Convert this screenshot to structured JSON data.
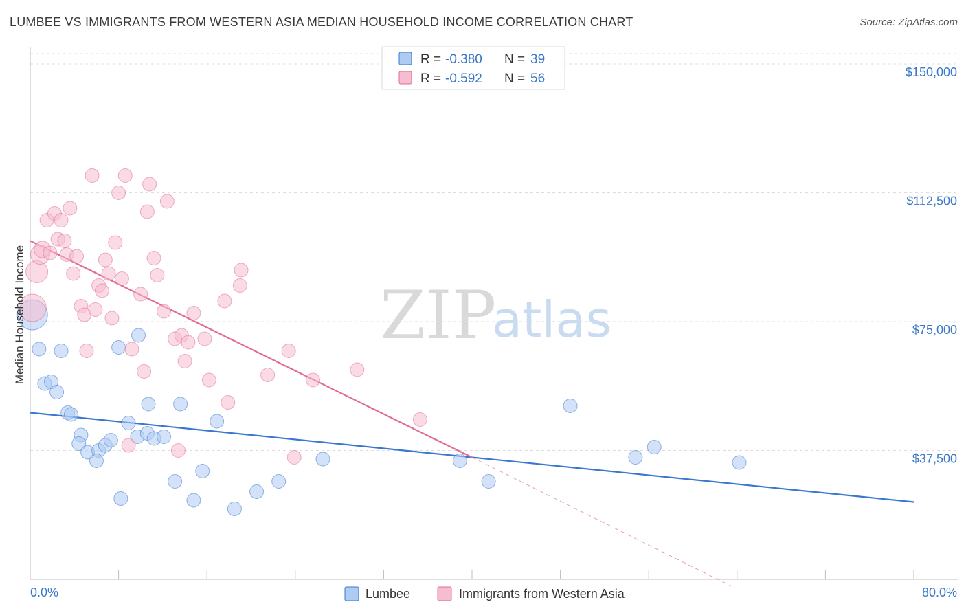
{
  "header": {
    "title": "LUMBEE VS IMMIGRANTS FROM WESTERN ASIA MEDIAN HOUSEHOLD INCOME CORRELATION CHART",
    "source": "Source: ZipAtlas.com"
  },
  "watermark": {
    "zip": "ZIP",
    "atlas": "atlas"
  },
  "stats_legend": {
    "rows": [
      {
        "r_label": "R =",
        "r_value": "-0.380",
        "n_label": "N =",
        "n_value": "39",
        "color": "#aecbf2"
      },
      {
        "r_label": "R =",
        "r_value": "-0.592",
        "n_label": "N =",
        "n_value": "56",
        "color": "#f6bcd0"
      }
    ]
  },
  "chart_data": {
    "type": "scatter",
    "title": "LUMBEE VS IMMIGRANTS FROM WESTERN ASIA MEDIAN HOUSEHOLD INCOME CORRELATION CHART",
    "xlabel": "",
    "ylabel": "Median Household Income",
    "xlim": [
      0,
      80
    ],
    "ylim": [
      0,
      155000
    ],
    "x_tick_labels": [
      "0.0%",
      "80.0%"
    ],
    "y_ticks": [
      37500,
      75000,
      112500,
      150000
    ],
    "y_tick_labels": [
      "$37,500",
      "$75,000",
      "$112,500",
      "$150,000"
    ],
    "grid": true,
    "legend_position": "bottom",
    "series": [
      {
        "name": "Lumbee",
        "color": "#3a78cf",
        "fill": "#aecbf2",
        "trend": {
          "x": [
            0,
            80
          ],
          "y": [
            48500,
            22500
          ]
        },
        "points": [
          {
            "x": 0.2,
            "y": 77000,
            "s": 22
          },
          {
            "x": 0.8,
            "y": 67000,
            "s": 10
          },
          {
            "x": 2.8,
            "y": 66500,
            "s": 10
          },
          {
            "x": 1.3,
            "y": 57000,
            "s": 10
          },
          {
            "x": 1.9,
            "y": 57500,
            "s": 10
          },
          {
            "x": 2.4,
            "y": 54500,
            "s": 10
          },
          {
            "x": 3.4,
            "y": 48500,
            "s": 10
          },
          {
            "x": 3.7,
            "y": 48000,
            "s": 10
          },
          {
            "x": 4.6,
            "y": 42000,
            "s": 10
          },
          {
            "x": 4.4,
            "y": 39500,
            "s": 10
          },
          {
            "x": 5.2,
            "y": 37000,
            "s": 10
          },
          {
            "x": 6.2,
            "y": 37500,
            "s": 10
          },
          {
            "x": 6.0,
            "y": 34500,
            "s": 10
          },
          {
            "x": 6.8,
            "y": 39000,
            "s": 10
          },
          {
            "x": 7.3,
            "y": 40500,
            "s": 10
          },
          {
            "x": 8.2,
            "y": 23500,
            "s": 10
          },
          {
            "x": 8.0,
            "y": 67500,
            "s": 10
          },
          {
            "x": 8.9,
            "y": 45500,
            "s": 10
          },
          {
            "x": 9.7,
            "y": 41500,
            "s": 10
          },
          {
            "x": 9.8,
            "y": 71000,
            "s": 10
          },
          {
            "x": 10.7,
            "y": 51000,
            "s": 10
          },
          {
            "x": 10.6,
            "y": 42500,
            "s": 10
          },
          {
            "x": 11.2,
            "y": 41000,
            "s": 10
          },
          {
            "x": 12.1,
            "y": 41500,
            "s": 10
          },
          {
            "x": 13.1,
            "y": 28500,
            "s": 10
          },
          {
            "x": 13.6,
            "y": 51000,
            "s": 10
          },
          {
            "x": 14.8,
            "y": 23000,
            "s": 10
          },
          {
            "x": 15.6,
            "y": 31500,
            "s": 10
          },
          {
            "x": 16.9,
            "y": 46000,
            "s": 10
          },
          {
            "x": 18.5,
            "y": 20500,
            "s": 10
          },
          {
            "x": 20.5,
            "y": 25500,
            "s": 10
          },
          {
            "x": 22.5,
            "y": 28500,
            "s": 10
          },
          {
            "x": 26.5,
            "y": 35000,
            "s": 10
          },
          {
            "x": 38.9,
            "y": 34500,
            "s": 10
          },
          {
            "x": 41.5,
            "y": 28500,
            "s": 10
          },
          {
            "x": 48.9,
            "y": 50500,
            "s": 10
          },
          {
            "x": 54.8,
            "y": 35500,
            "s": 10
          },
          {
            "x": 56.5,
            "y": 38500,
            "s": 10
          },
          {
            "x": 64.2,
            "y": 34000,
            "s": 10
          }
        ]
      },
      {
        "name": "Immigrants from Western Asia",
        "color": "#e06b96",
        "fill": "#f6bcd0",
        "trend": {
          "x": [
            0,
            40
          ],
          "y": [
            98500,
            35500
          ]
        },
        "trend_extension": {
          "x": [
            40,
            63.5
          ],
          "y": [
            35500,
            -2000
          ]
        },
        "points": [
          {
            "x": 0.2,
            "y": 79000,
            "s": 20
          },
          {
            "x": 0.6,
            "y": 89500,
            "s": 16
          },
          {
            "x": 0.9,
            "y": 94500,
            "s": 14
          },
          {
            "x": 1.1,
            "y": 96000,
            "s": 12
          },
          {
            "x": 1.5,
            "y": 104500,
            "s": 10
          },
          {
            "x": 1.8,
            "y": 95000,
            "s": 10
          },
          {
            "x": 2.2,
            "y": 106500,
            "s": 10
          },
          {
            "x": 2.5,
            "y": 99000,
            "s": 10
          },
          {
            "x": 2.8,
            "y": 104500,
            "s": 10
          },
          {
            "x": 3.1,
            "y": 98500,
            "s": 10
          },
          {
            "x": 3.3,
            "y": 94500,
            "s": 10
          },
          {
            "x": 3.6,
            "y": 108000,
            "s": 10
          },
          {
            "x": 3.9,
            "y": 89000,
            "s": 10
          },
          {
            "x": 4.2,
            "y": 94000,
            "s": 10
          },
          {
            "x": 4.6,
            "y": 79500,
            "s": 10
          },
          {
            "x": 4.9,
            "y": 77000,
            "s": 10
          },
          {
            "x": 5.1,
            "y": 66500,
            "s": 10
          },
          {
            "x": 5.6,
            "y": 117500,
            "s": 10
          },
          {
            "x": 5.9,
            "y": 78500,
            "s": 10
          },
          {
            "x": 6.2,
            "y": 85500,
            "s": 10
          },
          {
            "x": 6.5,
            "y": 84000,
            "s": 10
          },
          {
            "x": 6.8,
            "y": 93000,
            "s": 10
          },
          {
            "x": 7.1,
            "y": 89000,
            "s": 10
          },
          {
            "x": 7.4,
            "y": 76000,
            "s": 10
          },
          {
            "x": 7.7,
            "y": 98000,
            "s": 10
          },
          {
            "x": 8.0,
            "y": 112500,
            "s": 10
          },
          {
            "x": 8.3,
            "y": 87500,
            "s": 10
          },
          {
            "x": 8.6,
            "y": 117500,
            "s": 10
          },
          {
            "x": 8.9,
            "y": 39000,
            "s": 10
          },
          {
            "x": 9.2,
            "y": 67000,
            "s": 10
          },
          {
            "x": 10.0,
            "y": 83000,
            "s": 10
          },
          {
            "x": 10.3,
            "y": 60500,
            "s": 10
          },
          {
            "x": 10.6,
            "y": 107000,
            "s": 10
          },
          {
            "x": 10.8,
            "y": 115000,
            "s": 10
          },
          {
            "x": 11.2,
            "y": 93500,
            "s": 10
          },
          {
            "x": 11.5,
            "y": 88500,
            "s": 10
          },
          {
            "x": 12.1,
            "y": 78000,
            "s": 10
          },
          {
            "x": 12.4,
            "y": 110000,
            "s": 10
          },
          {
            "x": 13.1,
            "y": 70000,
            "s": 10
          },
          {
            "x": 13.4,
            "y": 37500,
            "s": 10
          },
          {
            "x": 13.7,
            "y": 71000,
            "s": 10
          },
          {
            "x": 14.0,
            "y": 63500,
            "s": 10
          },
          {
            "x": 14.3,
            "y": 69000,
            "s": 10
          },
          {
            "x": 14.8,
            "y": 77500,
            "s": 10
          },
          {
            "x": 15.8,
            "y": 70000,
            "s": 10
          },
          {
            "x": 16.2,
            "y": 58000,
            "s": 10
          },
          {
            "x": 17.6,
            "y": 81000,
            "s": 10
          },
          {
            "x": 17.9,
            "y": 51500,
            "s": 10
          },
          {
            "x": 19.0,
            "y": 85500,
            "s": 10
          },
          {
            "x": 19.1,
            "y": 90000,
            "s": 10
          },
          {
            "x": 21.5,
            "y": 59500,
            "s": 10
          },
          {
            "x": 23.4,
            "y": 66500,
            "s": 10
          },
          {
            "x": 23.9,
            "y": 35500,
            "s": 10
          },
          {
            "x": 25.6,
            "y": 58000,
            "s": 10
          },
          {
            "x": 29.6,
            "y": 61000,
            "s": 10
          },
          {
            "x": 35.3,
            "y": 46500,
            "s": 10
          }
        ]
      }
    ]
  }
}
